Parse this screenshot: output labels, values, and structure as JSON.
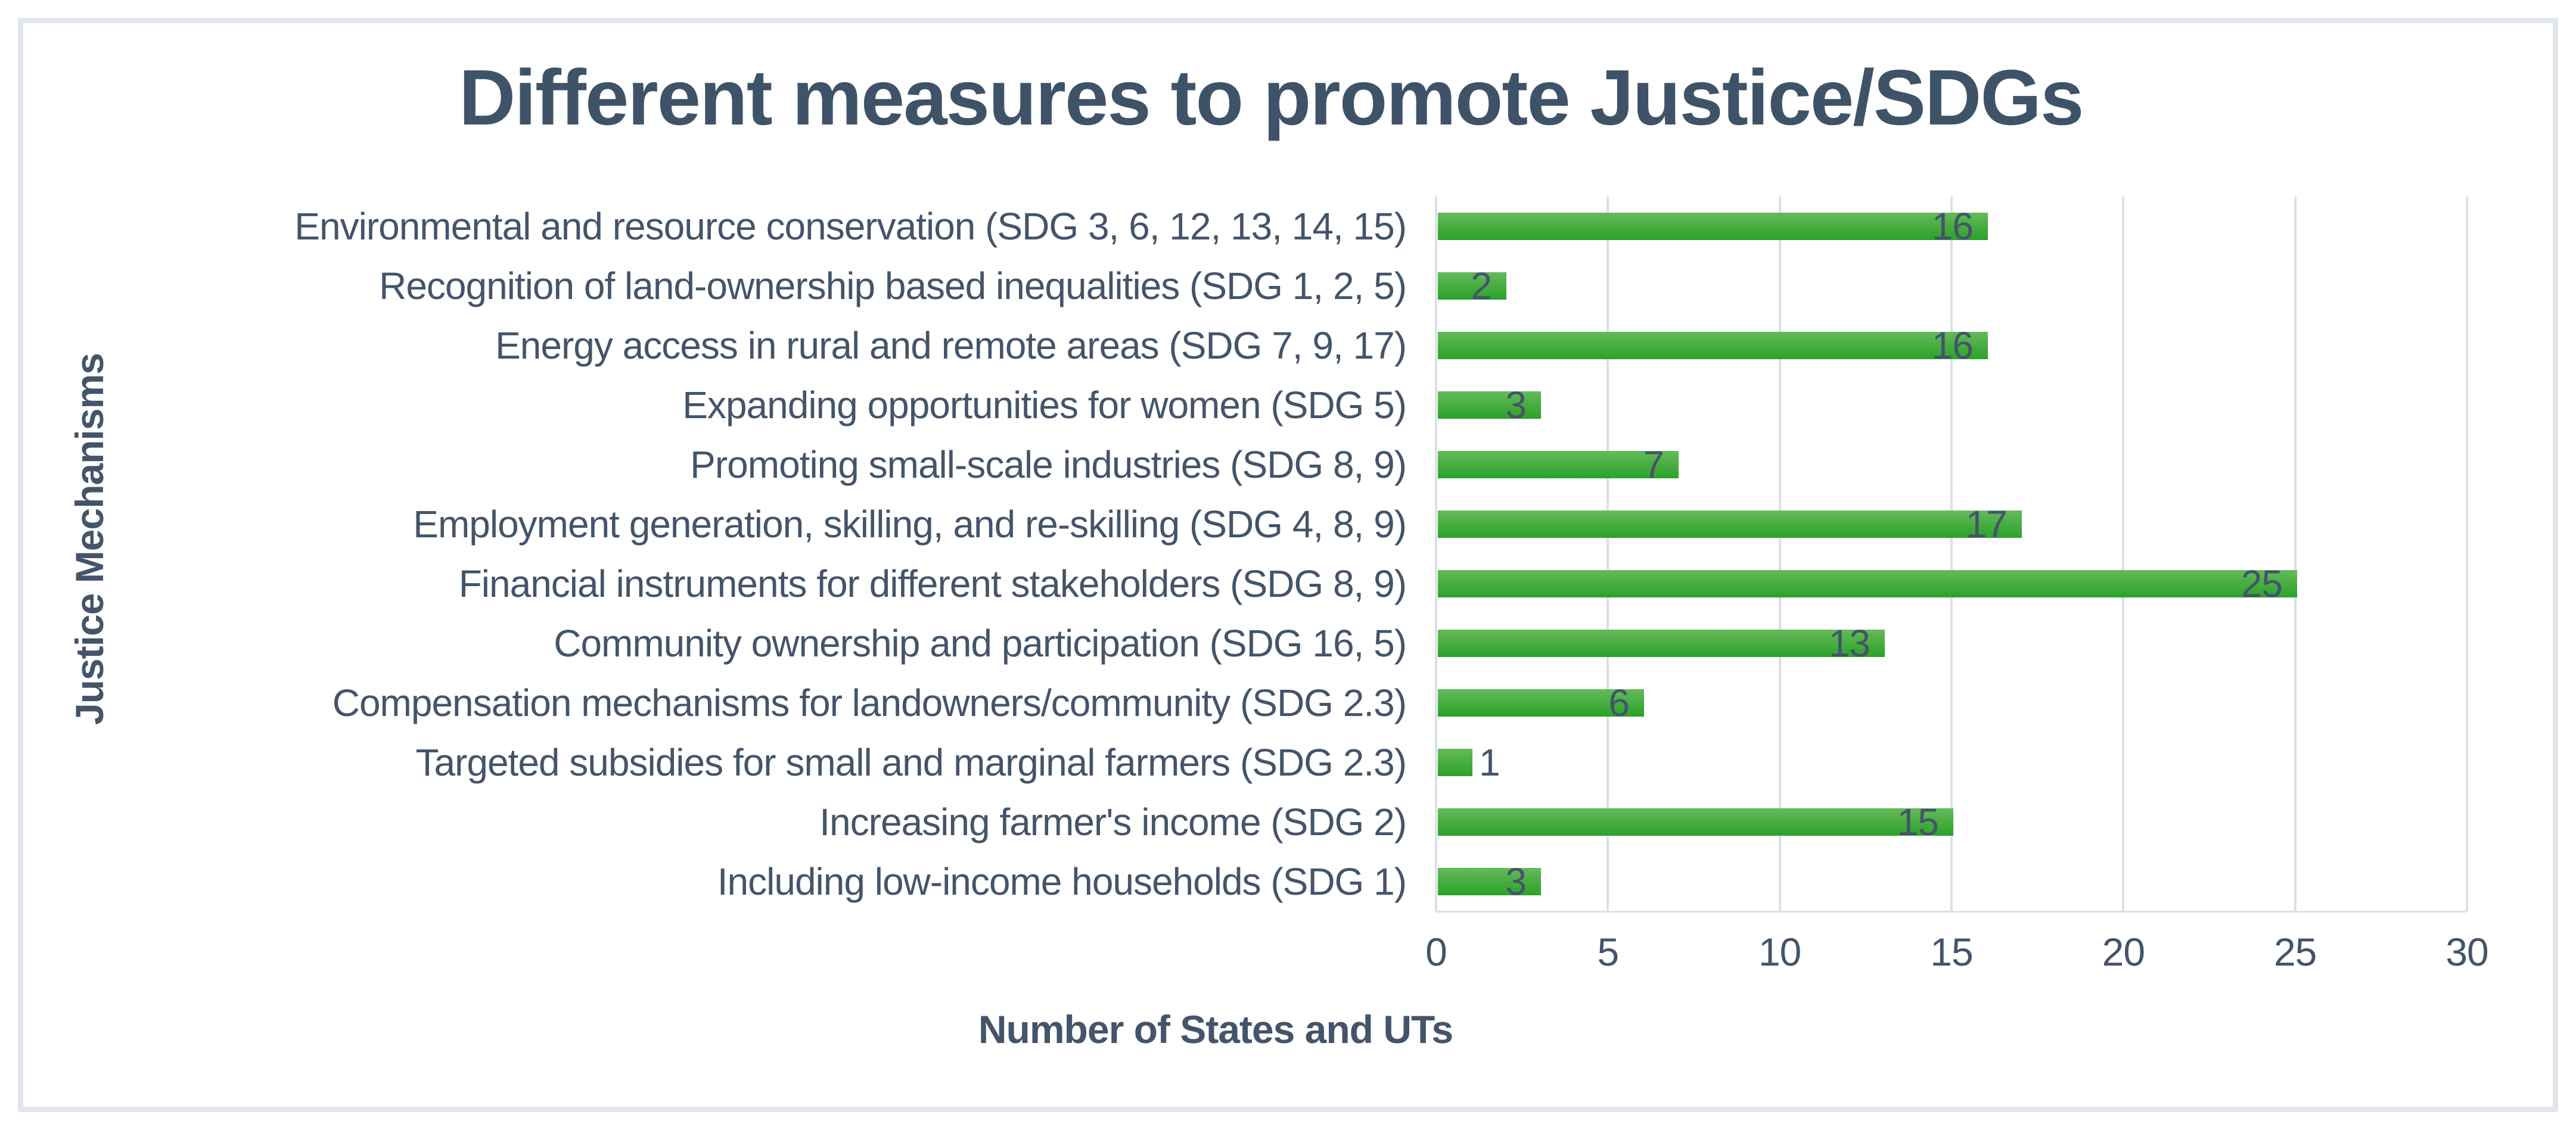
{
  "title": "Different measures to promote Justice/SDGs",
  "chart_data": {
    "type": "bar",
    "orientation": "horizontal",
    "title": "Different measures to promote Justice/SDGs",
    "xlabel": "Number of States and UTs",
    "ylabel": "Justice Mechanisms",
    "xlim": [
      0,
      30
    ],
    "xticks": [
      0,
      5,
      10,
      15,
      20,
      25,
      30
    ],
    "grid": true,
    "legend": false,
    "categories": [
      "Environmental and resource conservation (SDG 3, 6, 12, 13, 14, 15)",
      "Recognition of land-ownership based inequalities (SDG 1, 2, 5)",
      "Energy access in rural and remote areas (SDG 7, 9, 17)",
      "Expanding opportunities for women (SDG 5)",
      "Promoting small-scale industries (SDG 8, 9)",
      "Employment generation, skilling, and re-skilling (SDG 4, 8, 9)",
      "Financial instruments for different stakeholders (SDG 8, 9)",
      "Community ownership and  participation (SDG 16, 5)",
      "Compensation mechanisms for landowners/community (SDG 2.3)",
      "Targeted subsidies for small and marginal farmers (SDG 2.3)",
      "Increasing farmer's income (SDG 2)",
      "Including low-income households (SDG 1)"
    ],
    "values": [
      16,
      2,
      16,
      3,
      7,
      17,
      25,
      13,
      6,
      1,
      15,
      3
    ],
    "colors": {
      "bar_gradient_top": "#65ba5c",
      "bar_gradient_bottom": "#2aa32a",
      "text": "#44546A",
      "gridline": "#dbe0e8",
      "frame_border": "#e1e6ed",
      "background": "#ffffff"
    }
  }
}
